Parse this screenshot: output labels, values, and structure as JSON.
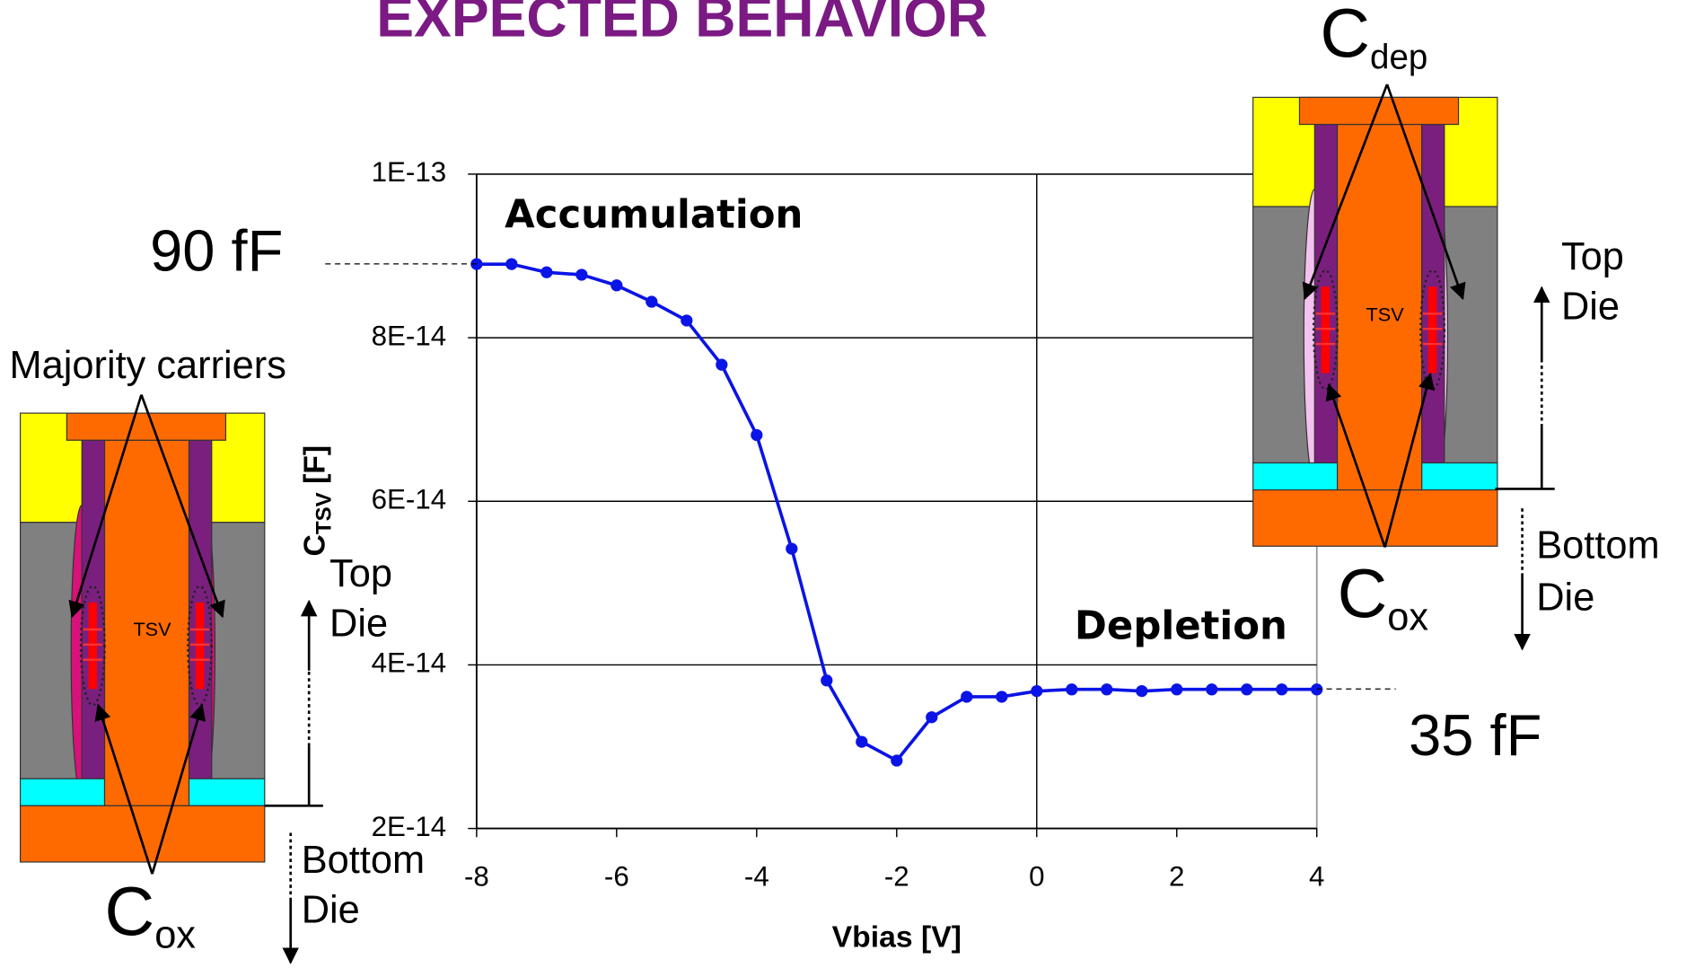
{
  "chart_data": {
    "type": "line",
    "title": "EXPECTED BEHAVIOR",
    "xlabel": "Vbias [V]",
    "ylabel": {
      "main": "C",
      "sub": "TSV",
      "rest": " [F]"
    },
    "x": [
      -8,
      -7.5,
      -7,
      -6.5,
      -6,
      -5.5,
      -5,
      -4.5,
      -4,
      -3.5,
      -3,
      -2.5,
      -2,
      -1.5,
      -1,
      -0.5,
      0,
      0.5,
      1,
      1.5,
      2,
      2.5,
      3,
      3.5,
      4
    ],
    "values": [
      8.9e-14,
      8.9e-14,
      8.8e-14,
      8.77e-14,
      8.64e-14,
      8.44e-14,
      8.21e-14,
      7.67e-14,
      6.81e-14,
      5.42e-14,
      3.81e-14,
      3.06e-14,
      2.83e-14,
      3.36e-14,
      3.61e-14,
      3.61e-14,
      3.68e-14,
      3.7e-14,
      3.7e-14,
      3.68e-14,
      3.7e-14,
      3.7e-14,
      3.7e-14,
      3.7e-14,
      3.7e-14
    ],
    "color": "#0a14e6",
    "xlim": [
      -8,
      4
    ],
    "xticks": [
      -8,
      -6,
      -4,
      -2,
      0,
      2,
      4
    ],
    "ylim": [
      2e-14,
      1e-13
    ],
    "yticks": [
      {
        "value": 2e-14,
        "label": "2E-14"
      },
      {
        "value": 4e-14,
        "label": "4E-14"
      },
      {
        "value": 6e-14,
        "label": "6E-14"
      },
      {
        "value": 8e-14,
        "label": "8E-14"
      },
      {
        "value": 1e-13,
        "label": "1E-13"
      }
    ],
    "grid": true,
    "annotations": {
      "accumulation": "Accumulation",
      "depletion": "Depletion",
      "high": "90 fF",
      "low": "35 fF"
    }
  },
  "diagrams": {
    "left": {
      "heading": "Majority carriers",
      "tsv": "TSV",
      "top_die": "Top Die",
      "bottom_die": "Bottom Die",
      "cap": {
        "main": "C",
        "sub": "ox"
      }
    },
    "right": {
      "heading": {
        "main": "C",
        "sub": "dep"
      },
      "tsv": "TSV",
      "top_die": "Top Die",
      "bottom_die": "Bottom Die",
      "cap": {
        "main": "C",
        "sub": "ox"
      }
    }
  }
}
